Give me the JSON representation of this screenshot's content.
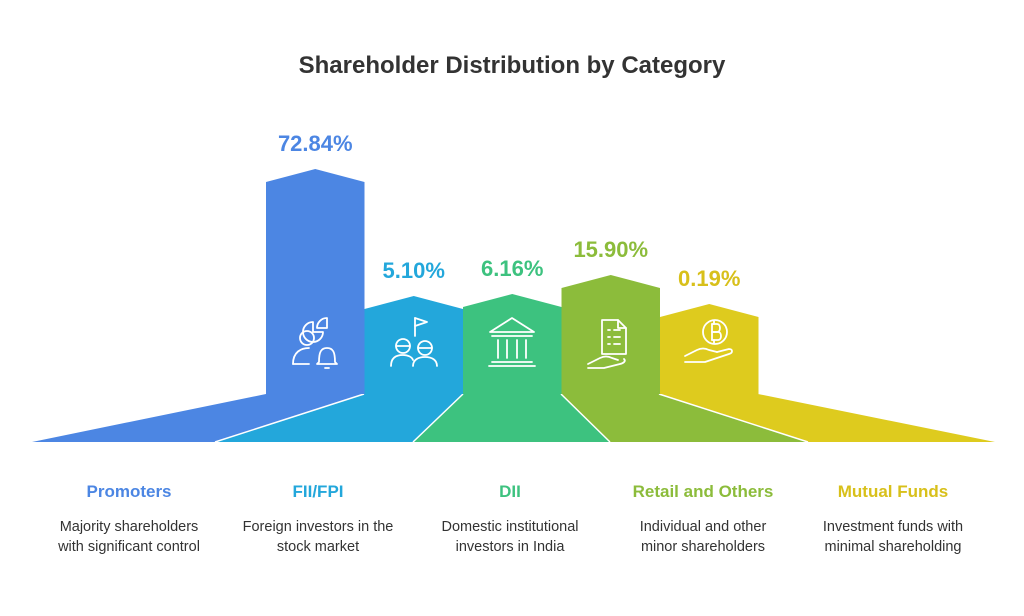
{
  "chart_data": {
    "type": "bar",
    "title": "Shareholder Distribution by Category",
    "categories": [
      "Promoters",
      "FII/FPI",
      "DII",
      "Retail and Others",
      "Mutual Funds"
    ],
    "value_labels": [
      "72.84%",
      "5.10%",
      "6.16%",
      "15.90%",
      "0.19%"
    ],
    "values": [
      72.84,
      5.1,
      6.16,
      15.9,
      0.19
    ],
    "descriptions": [
      [
        "Majority shareholders",
        "with significant control"
      ],
      [
        "Foreign investors in the",
        "stock market"
      ],
      [
        "Domestic institutional",
        "investors in India"
      ],
      [
        "Individual and other",
        "minor shareholders"
      ],
      [
        "Investment funds with",
        "minimal shareholding"
      ]
    ],
    "colors": [
      "#4C86E3",
      "#23A7DB",
      "#3DC27F",
      "#8CBC3B",
      "#DECB1E"
    ],
    "label_colors": [
      "#4C86E3",
      "#23A7DB",
      "#3DC27F",
      "#8CBC3B",
      "#D8C01A"
    ],
    "icons": [
      "user-pie-bell-icon",
      "people-flag-icon",
      "bank-building-icon",
      "hand-document-icon",
      "hand-coin-icon"
    ]
  }
}
